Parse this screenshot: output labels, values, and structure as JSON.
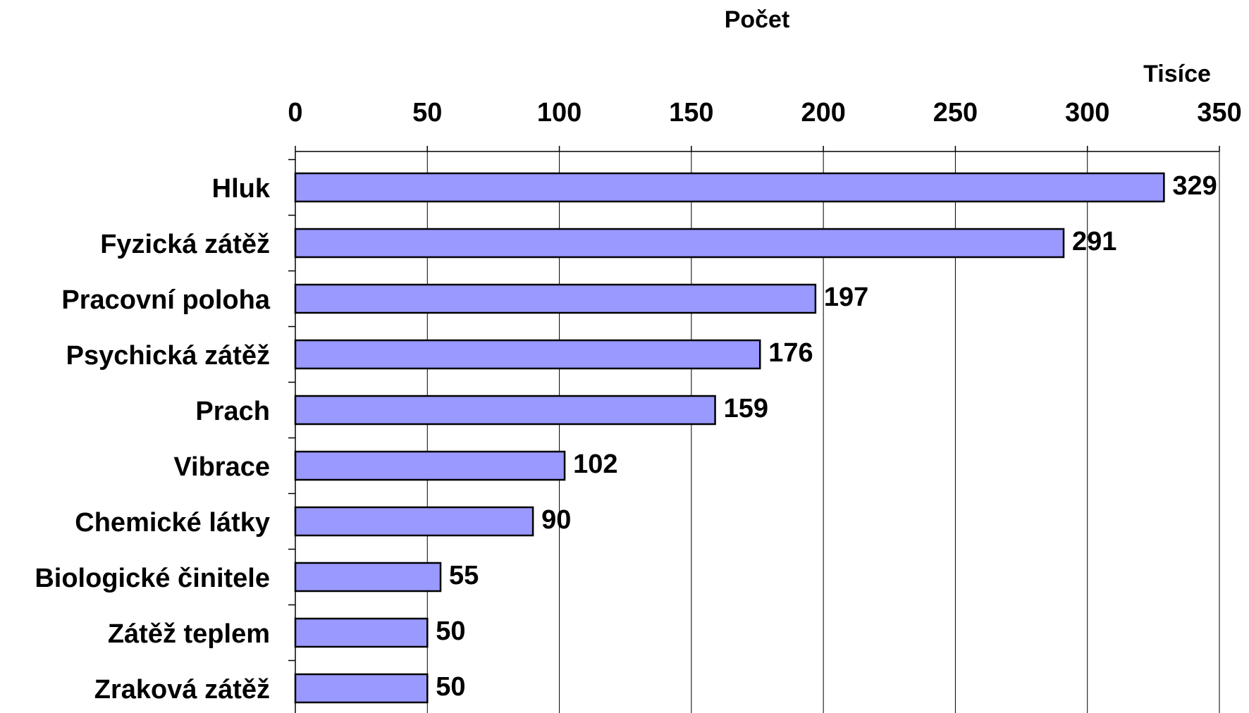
{
  "chart_data": {
    "type": "bar",
    "orientation": "horizontal",
    "title": "Počet",
    "units_label": "Tisíce",
    "categories": [
      "Hluk",
      "Fyzická zátěž",
      "Pracovní poloha",
      "Psychická zátěž",
      "Prach",
      "Vibrace",
      "Chemické látky",
      "Biologické činitele",
      "Zátěž teplem",
      "Zraková zátěž"
    ],
    "values": [
      329,
      291,
      197,
      176,
      159,
      102,
      90,
      55,
      50,
      50
    ],
    "color": "#9999ff",
    "xlim": [
      0,
      350
    ],
    "xticks": [
      0,
      50,
      100,
      150,
      200,
      250,
      300,
      350
    ],
    "grid": true
  }
}
